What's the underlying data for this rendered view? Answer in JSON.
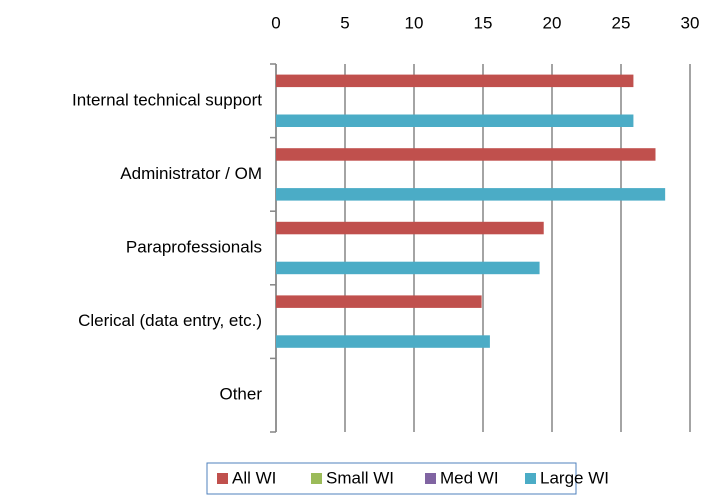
{
  "chart_data": {
    "type": "bar",
    "orientation": "horizontal",
    "categories": [
      "Internal technical support",
      "Administrator / OM",
      "Paraprofessionals",
      "Clerical (data entry, etc.)",
      "Other"
    ],
    "series": [
      {
        "name": "All WI",
        "color": "#c0504d",
        "values": [
          25.9,
          27.5,
          19.4,
          14.9,
          null
        ]
      },
      {
        "name": "Small WI",
        "color": "#9bbb59",
        "values": [
          null,
          null,
          null,
          null,
          null
        ]
      },
      {
        "name": "Med WI",
        "color": "#8064a2",
        "values": [
          null,
          null,
          null,
          null,
          null
        ]
      },
      {
        "name": "Large WI",
        "color": "#4bacc6",
        "values": [
          25.9,
          28.2,
          19.1,
          15.5,
          null
        ]
      }
    ],
    "xlim": [
      0,
      30
    ],
    "xticks": [
      0,
      5,
      10,
      15,
      20,
      25,
      30
    ],
    "grid": true,
    "legend": "bottom"
  }
}
